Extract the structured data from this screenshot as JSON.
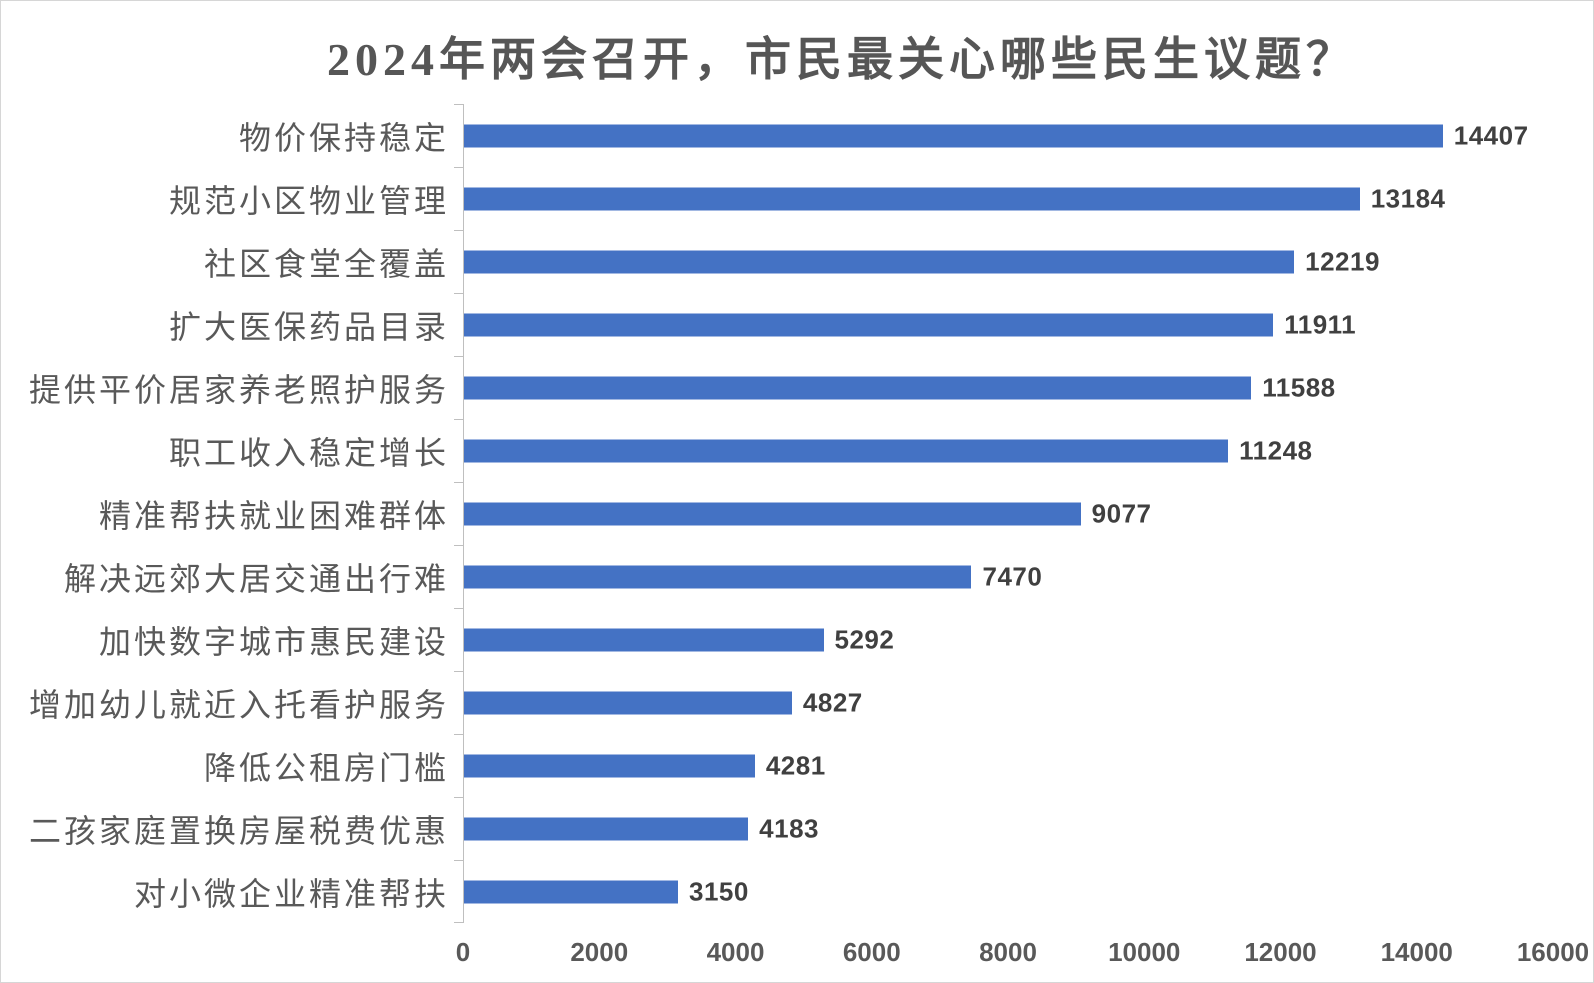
{
  "chart_data": {
    "type": "bar",
    "orientation": "horizontal",
    "title": "2024年两会召开，市民最关心哪些民生议题？",
    "categories": [
      "物价保持稳定",
      "规范小区物业管理",
      "社区食堂全覆盖",
      "扩大医保药品目录",
      "提供平价居家养老照护服务",
      "职工收入稳定增长",
      "精准帮扶就业困难群体",
      "解决远郊大居交通出行难",
      "加快数字城市惠民建设",
      "增加幼儿就近入托看护服务",
      "降低公租房门槛",
      "二孩家庭置换房屋税费优惠",
      "对小微企业精准帮扶"
    ],
    "values": [
      14407,
      13184,
      12219,
      11911,
      11588,
      11248,
      9077,
      7470,
      5292,
      4827,
      4281,
      4183,
      3150
    ],
    "xlabel": "",
    "ylabel": "",
    "xlim": [
      0,
      16000
    ],
    "x_ticks": [
      0,
      2000,
      4000,
      6000,
      8000,
      10000,
      12000,
      14000,
      16000
    ],
    "grid": false,
    "legend_position": "none",
    "value_labels_shown": true
  },
  "colors": {
    "bar": "#4472C4",
    "title_text": "#565656",
    "category_text": "#595959",
    "axis_tick_text": "#595959",
    "value_label_text": "#404040",
    "axis_line": "#BFBFBF",
    "background": "#FFFFFF"
  }
}
